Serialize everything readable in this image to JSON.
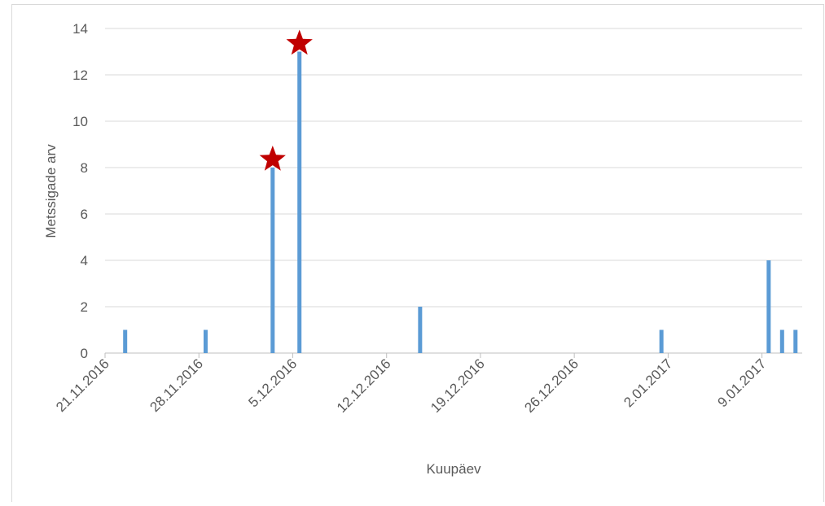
{
  "chart_data": {
    "type": "bar",
    "x_label": "Kuupäev",
    "y_label": "Metssigade arv",
    "x": [
      "22.11.2016",
      "28.11.2016",
      "3.12.2016",
      "5.12.2016",
      "14.12.2016",
      "1.01.2017",
      "9.01.2017",
      "10.01.2017",
      "11.01.2017"
    ],
    "values": [
      1,
      1,
      8,
      13,
      2,
      1,
      4,
      1,
      1
    ],
    "color": "#5b9bd5",
    "highlighted": [
      2,
      3
    ],
    "highlight_color": "#c00000",
    "xlim": [
      "21.11.2016",
      "12.01.2017"
    ],
    "xticks": [
      "21.11.2016",
      "28.11.2016",
      "5.12.2016",
      "12.12.2016",
      "19.12.2016",
      "26.12.2016",
      "2.01.2017",
      "9.01.2017"
    ],
    "ylim": [
      0,
      14
    ],
    "yticks": [
      0,
      2,
      4,
      6,
      8,
      10,
      12,
      14
    ],
    "grid": true
  }
}
